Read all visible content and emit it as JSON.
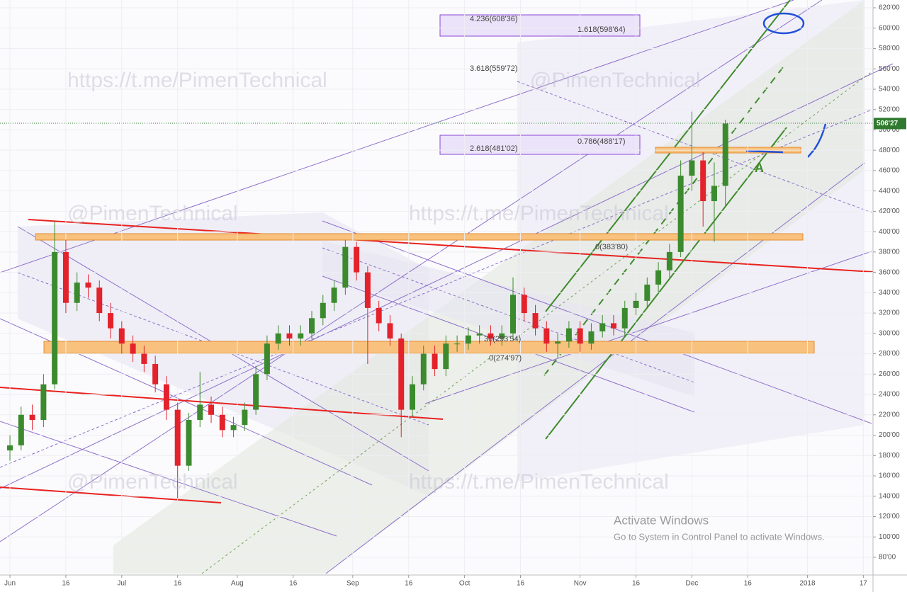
{
  "chart_data": {
    "type": "candlestick",
    "x": [
      0,
      3,
      6,
      9,
      12,
      15,
      18,
      21,
      24,
      27,
      30,
      33,
      36,
      39,
      42,
      45,
      48,
      51,
      54,
      57,
      60,
      63,
      66,
      69,
      72,
      75,
      78,
      81,
      84,
      87,
      90,
      93,
      96,
      99,
      102,
      105,
      108,
      111,
      114,
      117,
      120,
      123,
      126,
      129,
      132,
      135,
      138,
      141,
      144,
      147,
      150,
      153,
      156,
      159,
      162,
      165,
      168,
      171,
      174,
      177,
      180,
      183,
      186,
      189,
      192
    ],
    "open": [
      185,
      190,
      220,
      215,
      250,
      380,
      330,
      350,
      345,
      320,
      305,
      290,
      280,
      270,
      250,
      225,
      170,
      215,
      230,
      220,
      205,
      210,
      225,
      260,
      290,
      300,
      295,
      300,
      315,
      330,
      345,
      385,
      360,
      325,
      310,
      295,
      225,
      250,
      280,
      265,
      290,
      290,
      298,
      300,
      295,
      300,
      338,
      320,
      305,
      290,
      292,
      305,
      290,
      302,
      310,
      305,
      325,
      332,
      348,
      362,
      380,
      455,
      470,
      430,
      445
    ],
    "high": [
      200,
      228,
      230,
      260,
      410,
      392,
      360,
      358,
      352,
      330,
      312,
      298,
      288,
      278,
      258,
      232,
      222,
      262,
      238,
      228,
      218,
      232,
      268,
      298,
      308,
      308,
      308,
      322,
      338,
      352,
      392,
      390,
      366,
      332,
      318,
      300,
      258,
      288,
      288,
      298,
      298,
      306,
      308,
      308,
      308,
      355,
      345,
      328,
      312,
      300,
      312,
      312,
      310,
      318,
      318,
      332,
      340,
      355,
      370,
      388,
      470,
      518,
      478,
      468,
      510
    ],
    "low": [
      175,
      185,
      205,
      208,
      245,
      320,
      322,
      335,
      312,
      295,
      280,
      272,
      262,
      242,
      215,
      138,
      165,
      208,
      212,
      198,
      198,
      204,
      220,
      254,
      284,
      288,
      288,
      294,
      308,
      322,
      338,
      352,
      270,
      302,
      288,
      198,
      218,
      244,
      258,
      258,
      282,
      284,
      290,
      288,
      288,
      294,
      312,
      298,
      282,
      276,
      286,
      282,
      284,
      296,
      298,
      298,
      318,
      326,
      340,
      355,
      375,
      440,
      405,
      390,
      425
    ],
    "close": [
      190,
      220,
      215,
      250,
      380,
      330,
      350,
      345,
      320,
      305,
      290,
      280,
      270,
      250,
      225,
      170,
      215,
      230,
      220,
      205,
      210,
      225,
      260,
      290,
      300,
      295,
      300,
      315,
      330,
      345,
      385,
      360,
      325,
      310,
      295,
      225,
      250,
      280,
      265,
      290,
      290,
      298,
      300,
      295,
      300,
      338,
      320,
      305,
      290,
      292,
      305,
      290,
      302,
      310,
      305,
      325,
      332,
      348,
      362,
      380,
      455,
      470,
      430,
      445,
      506.27
    ],
    "up_color": "#3c8a2e",
    "down_color": "#e3222b",
    "xlim": [
      -2.67,
      231.6
    ],
    "ylim": [
      63.98,
      627.65
    ],
    "xticks": [
      {
        "value": 0,
        "label": "Jun"
      },
      {
        "value": 15,
        "label": "16"
      },
      {
        "value": 30,
        "label": "Jul"
      },
      {
        "value": 45,
        "label": "16"
      },
      {
        "value": 61,
        "label": "Aug"
      },
      {
        "value": 76,
        "label": "16"
      },
      {
        "value": 92,
        "label": "Sep"
      },
      {
        "value": 107,
        "label": "16"
      },
      {
        "value": 122,
        "label": "Oct"
      },
      {
        "value": 137,
        "label": "16"
      },
      {
        "value": 153,
        "label": "Nov"
      },
      {
        "value": 168,
        "label": "16"
      },
      {
        "value": 183,
        "label": "Dec"
      },
      {
        "value": 198,
        "label": "16"
      },
      {
        "value": 214,
        "label": "2018"
      },
      {
        "value": 229,
        "label": "17"
      }
    ],
    "yticks": [
      {
        "value": 80,
        "label": "80'00"
      },
      {
        "value": 100,
        "label": "100'00"
      },
      {
        "value": 120,
        "label": "120'00"
      },
      {
        "value": 140,
        "label": "140'00"
      },
      {
        "value": 160,
        "label": "160'00"
      },
      {
        "value": 180,
        "label": "180'00"
      },
      {
        "value": 200,
        "label": "200'00"
      },
      {
        "value": 220,
        "label": "220'00"
      },
      {
        "value": 240,
        "label": "240'00"
      },
      {
        "value": 260,
        "label": "260'00"
      },
      {
        "value": 280,
        "label": "280'00"
      },
      {
        "value": 300,
        "label": "300'00"
      },
      {
        "value": 320,
        "label": "320'00"
      },
      {
        "value": 340,
        "label": "340'00"
      },
      {
        "value": 360,
        "label": "360'00"
      },
      {
        "value": 380,
        "label": "380'00"
      },
      {
        "value": 400,
        "label": "400'00"
      },
      {
        "value": 420,
        "label": "420'00"
      },
      {
        "value": 440,
        "label": "440'00"
      },
      {
        "value": 460,
        "label": "460'00"
      },
      {
        "value": 480,
        "label": "480'00"
      },
      {
        "value": 500,
        "label": "500'00"
      },
      {
        "value": 520,
        "label": "520'00"
      },
      {
        "value": 540,
        "label": "540'00"
      },
      {
        "value": 560,
        "label": "560'00"
      },
      {
        "value": 580,
        "label": "580'00"
      },
      {
        "value": 600,
        "label": "600'00"
      },
      {
        "value": 620,
        "label": "620'00"
      }
    ],
    "grid": true,
    "last_price": {
      "value": 506.27,
      "label": "506'27"
    },
    "annotations": [
      "4.236(608'36)",
      "1.618(598'64)",
      "3.618(559'72)",
      "2.618(481'02)",
      "0.786(488'17)",
      "0(383'80)",
      "36(293'54)",
      "0(274'97)",
      "A"
    ],
    "watermarks": [
      "https://t.me/PimenTechnical",
      "@PimenTechnical",
      "@PimenTechnical",
      "https://t.me/PimenTechnical",
      "@PimenTechnical",
      "https://t.me/PimenTechnical"
    ],
    "notice": {
      "title": "Activate Windows",
      "text": "Go to System in Control Panel to activate Windows."
    }
  }
}
